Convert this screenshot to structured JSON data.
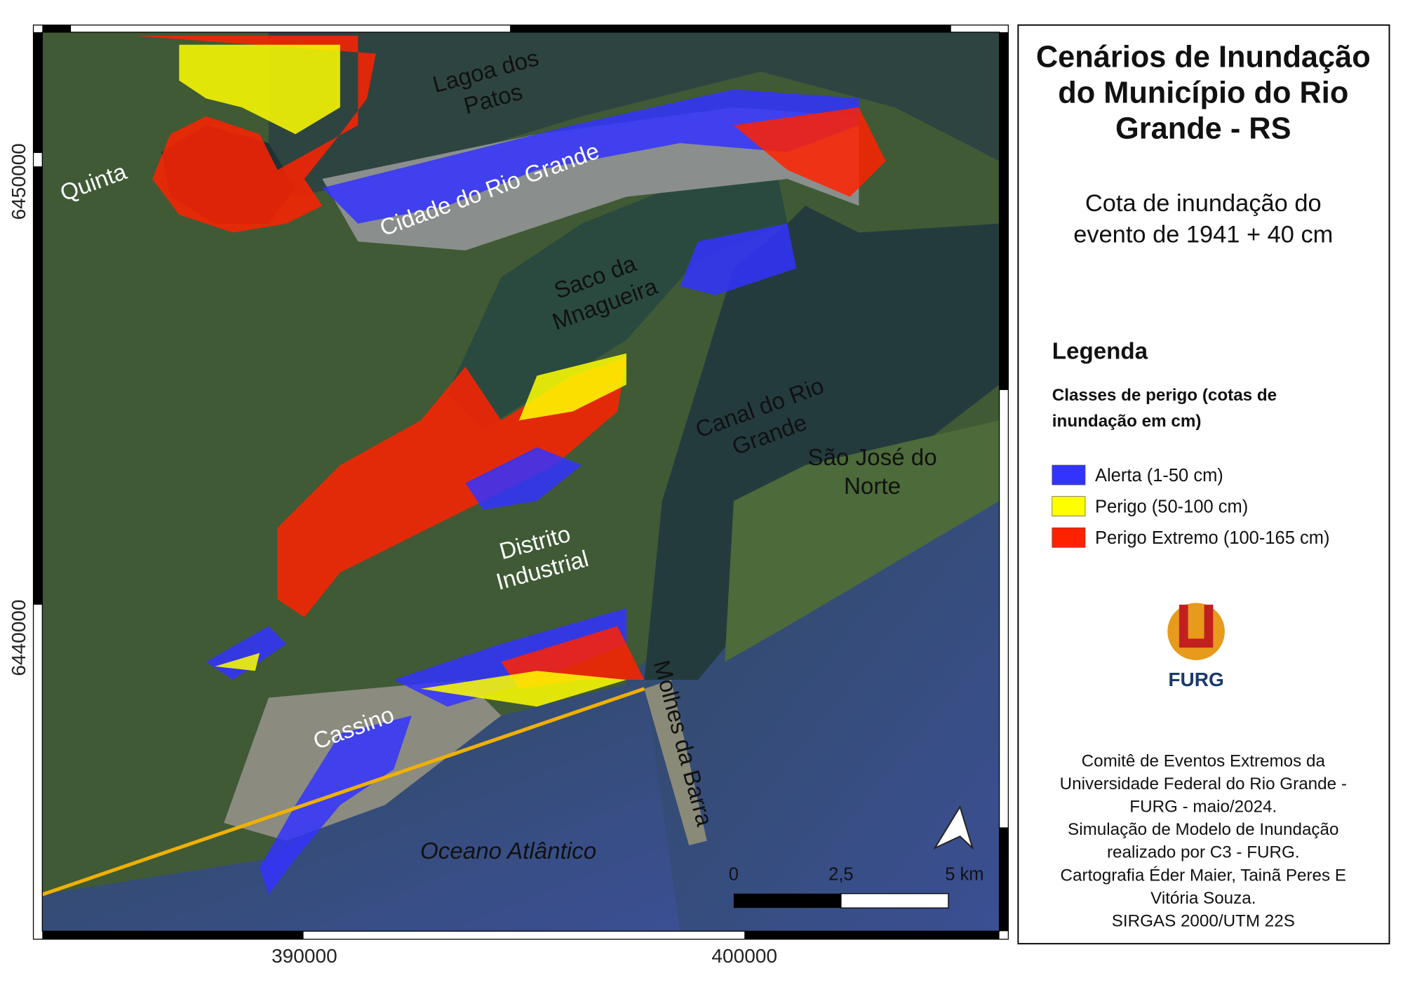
{
  "map": {
    "title": [
      "Cenários de Inundação",
      "do Município do Rio",
      "Grande - RS"
    ],
    "subtitle": [
      "Cota de inundação do",
      "evento de 1941 + 40 cm"
    ],
    "legend": {
      "heading": "Legenda",
      "subheading": [
        "Classes de perigo (cotas de",
        "inundação em cm)"
      ],
      "items": [
        {
          "label": "Alerta (1-50 cm)",
          "color": "#3333ff"
        },
        {
          "label": "Perigo (50-100 cm)",
          "color": "#ffff00"
        },
        {
          "label": "Perigo Extremo (100-165 cm)",
          "color": "#ff2200"
        }
      ]
    },
    "logo": "FURG",
    "places": [
      [
        "Quinta"
      ],
      [
        "Lagoa dos",
        "Patos"
      ],
      [
        "Cidade do Rio Grande"
      ],
      [
        "Saco da",
        "Mnagueira"
      ],
      [
        "Canal do Rio",
        "Grande"
      ],
      [
        "São José do",
        "Norte"
      ],
      [
        "Distrito",
        "Industrial"
      ],
      [
        "Molhes da Barra"
      ],
      [
        "Cassino"
      ],
      [
        "Oceano Atlântico"
      ]
    ],
    "coordinates": {
      "y": [
        "6450000",
        "6440000"
      ],
      "x": [
        "390000",
        "400000"
      ]
    },
    "scale_bar": [
      "0",
      "2,5",
      "5 km"
    ],
    "credits": [
      "Comitê de Eventos Extremos da",
      "Universidade Federal do Rio Grande -",
      "FURG - maio/2024.",
      "Simulação de Modelo de Inundação",
      "realizado por C3 - FURG.",
      "Cartografia Éder Maier, Tainã Peres E",
      "Vitória Souza.",
      "SIRGAS 2000/UTM 22S"
    ]
  }
}
